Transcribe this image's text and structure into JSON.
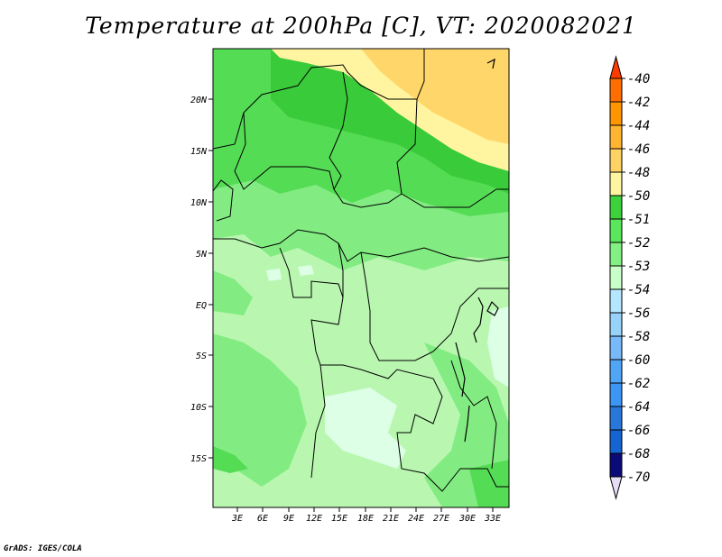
{
  "title": "Temperature at 200hPa [C], VT: 2020082021",
  "credit": "GrADS: IGES/COLA",
  "map": {
    "lat_labels": [
      "20N",
      "15N",
      "10N",
      "5N",
      "EQ",
      "5S",
      "10S",
      "15S"
    ],
    "lon_labels": [
      "3E",
      "6E",
      "9E",
      "12E",
      "15E",
      "18E",
      "21E",
      "24E",
      "27E",
      "30E",
      "33E"
    ]
  },
  "colorbar": {
    "labels": [
      "-40",
      "-42",
      "-44",
      "-46",
      "-48",
      "-50",
      "-51",
      "-52",
      "-53",
      "-54",
      "-56",
      "-58",
      "-60",
      "-62",
      "-64",
      "-66",
      "-68",
      "-70"
    ],
    "colors": [
      "#ff3c00",
      "#ff6e00",
      "#ff9600",
      "#ffb432",
      "#ffd264",
      "#fff5a0",
      "#3cd23c",
      "#5ae65a",
      "#82f082",
      "#c8ffc8",
      "#b4e6ff",
      "#96d2fa",
      "#78b9fa",
      "#50a5f5",
      "#3c96f5",
      "#2878dc",
      "#1464d2",
      "#0a0a78",
      "#e6dcf5"
    ]
  }
}
